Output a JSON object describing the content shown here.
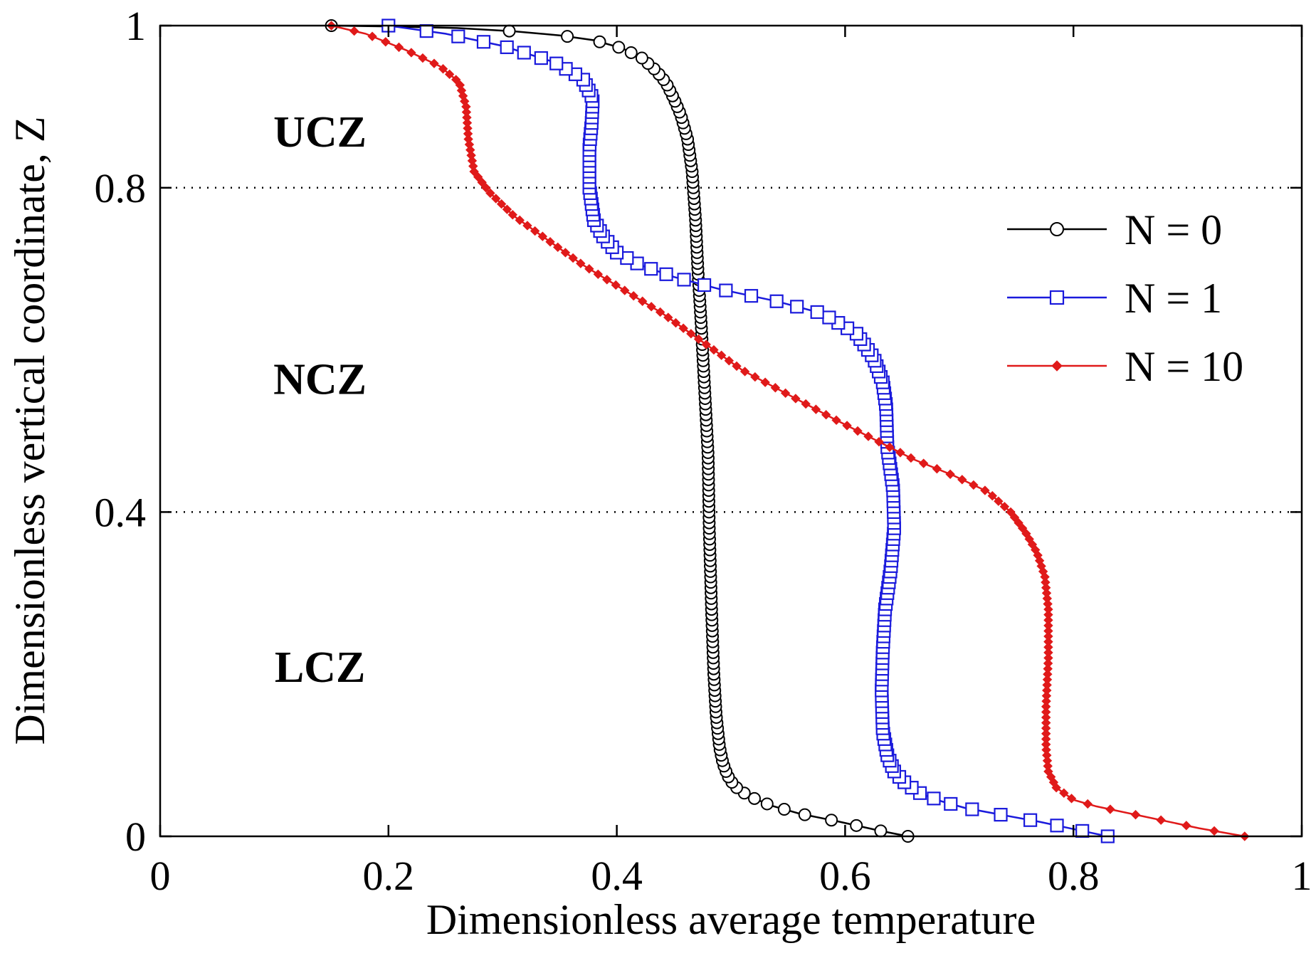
{
  "chart_data": {
    "type": "line",
    "title": "",
    "xlabel": "Dimensionless average temperature",
    "ylabel": "Dimensionless vertical coordinate, Z",
    "xlim": [
      0,
      1
    ],
    "ylim": [
      0,
      1
    ],
    "x_ticks": [
      0,
      0.2,
      0.4,
      0.6,
      0.8,
      1
    ],
    "x_tick_labels": [
      "0",
      "0.2",
      "0.4",
      "0.6",
      "0.8",
      "1"
    ],
    "y_ticks": [
      0,
      0.4,
      0.8,
      1
    ],
    "y_tick_labels": [
      "0",
      "0.4",
      "0.8",
      "1"
    ],
    "hlines": [
      0.4,
      0.8
    ],
    "legend_position": "upper-right",
    "zone_labels": [
      {
        "text": "UCZ",
        "x": 0.14,
        "y": 0.87
      },
      {
        "text": "NCZ",
        "x": 0.14,
        "y": 0.565
      },
      {
        "text": "LCZ",
        "x": 0.14,
        "y": 0.21
      }
    ],
    "series": [
      {
        "name": "N = 0",
        "legend": "N = 0",
        "color": "#000000",
        "marker": "circle",
        "profile": [
          [
            0.655,
            0.0
          ],
          [
            0.63,
            0.007
          ],
          [
            0.595,
            0.018
          ],
          [
            0.56,
            0.028
          ],
          [
            0.535,
            0.038
          ],
          [
            0.515,
            0.05
          ],
          [
            0.503,
            0.062
          ],
          [
            0.497,
            0.075
          ],
          [
            0.493,
            0.09
          ],
          [
            0.49,
            0.11
          ],
          [
            0.487,
            0.15
          ],
          [
            0.485,
            0.2
          ],
          [
            0.483,
            0.28
          ],
          [
            0.481,
            0.38
          ],
          [
            0.48,
            0.47
          ],
          [
            0.477,
            0.55
          ],
          [
            0.474,
            0.63
          ],
          [
            0.471,
            0.7
          ],
          [
            0.469,
            0.76
          ],
          [
            0.466,
            0.82
          ],
          [
            0.462,
            0.86
          ],
          [
            0.456,
            0.89
          ],
          [
            0.45,
            0.91
          ],
          [
            0.443,
            0.93
          ],
          [
            0.434,
            0.945
          ],
          [
            0.422,
            0.96
          ],
          [
            0.405,
            0.972
          ],
          [
            0.38,
            0.982
          ],
          [
            0.35,
            0.988
          ],
          [
            0.31,
            0.993
          ],
          [
            0.26,
            0.997
          ],
          [
            0.2,
            0.999
          ],
          [
            0.15,
            1.0
          ]
        ]
      },
      {
        "name": "N = 1",
        "legend": "N = 1",
        "color": "#1a1adc",
        "marker": "square",
        "profile": [
          [
            0.83,
            0.0
          ],
          [
            0.81,
            0.006
          ],
          [
            0.77,
            0.018
          ],
          [
            0.735,
            0.027
          ],
          [
            0.705,
            0.035
          ],
          [
            0.685,
            0.043
          ],
          [
            0.667,
            0.052
          ],
          [
            0.653,
            0.065
          ],
          [
            0.643,
            0.08
          ],
          [
            0.637,
            0.1
          ],
          [
            0.633,
            0.13
          ],
          [
            0.632,
            0.18
          ],
          [
            0.633,
            0.23
          ],
          [
            0.635,
            0.28
          ],
          [
            0.64,
            0.33
          ],
          [
            0.643,
            0.38
          ],
          [
            0.642,
            0.43
          ],
          [
            0.637,
            0.48
          ],
          [
            0.636,
            0.53
          ],
          [
            0.633,
            0.56
          ],
          [
            0.625,
            0.59
          ],
          [
            0.61,
            0.62
          ],
          [
            0.58,
            0.645
          ],
          [
            0.54,
            0.66
          ],
          [
            0.49,
            0.675
          ],
          [
            0.45,
            0.69
          ],
          [
            0.42,
            0.705
          ],
          [
            0.4,
            0.72
          ],
          [
            0.388,
            0.74
          ],
          [
            0.38,
            0.76
          ],
          [
            0.376,
            0.8
          ],
          [
            0.376,
            0.85
          ],
          [
            0.378,
            0.88
          ],
          [
            0.379,
            0.91
          ],
          [
            0.37,
            0.935
          ],
          [
            0.345,
            0.955
          ],
          [
            0.3,
            0.975
          ],
          [
            0.25,
            0.99
          ],
          [
            0.2,
            1.0
          ]
        ]
      },
      {
        "name": "N = 10",
        "legend": "N = 10",
        "color": "#e01a1a",
        "marker": "diamond",
        "profile": [
          [
            0.95,
            0.0
          ],
          [
            0.91,
            0.01
          ],
          [
            0.86,
            0.025
          ],
          [
            0.82,
            0.037
          ],
          [
            0.8,
            0.045
          ],
          [
            0.785,
            0.06
          ],
          [
            0.778,
            0.08
          ],
          [
            0.776,
            0.11
          ],
          [
            0.776,
            0.16
          ],
          [
            0.778,
            0.22
          ],
          [
            0.778,
            0.28
          ],
          [
            0.775,
            0.32
          ],
          [
            0.768,
            0.35
          ],
          [
            0.758,
            0.375
          ],
          [
            0.745,
            0.4
          ],
          [
            0.725,
            0.425
          ],
          [
            0.695,
            0.445
          ],
          [
            0.66,
            0.465
          ],
          [
            0.625,
            0.49
          ],
          [
            0.59,
            0.515
          ],
          [
            0.55,
            0.545
          ],
          [
            0.51,
            0.575
          ],
          [
            0.475,
            0.61
          ],
          [
            0.44,
            0.645
          ],
          [
            0.405,
            0.675
          ],
          [
            0.37,
            0.705
          ],
          [
            0.34,
            0.735
          ],
          [
            0.31,
            0.765
          ],
          [
            0.288,
            0.795
          ],
          [
            0.275,
            0.82
          ],
          [
            0.27,
            0.86
          ],
          [
            0.268,
            0.9
          ],
          [
            0.262,
            0.93
          ],
          [
            0.245,
            0.95
          ],
          [
            0.215,
            0.97
          ],
          [
            0.18,
            0.99
          ],
          [
            0.15,
            1.0
          ]
        ]
      }
    ]
  }
}
